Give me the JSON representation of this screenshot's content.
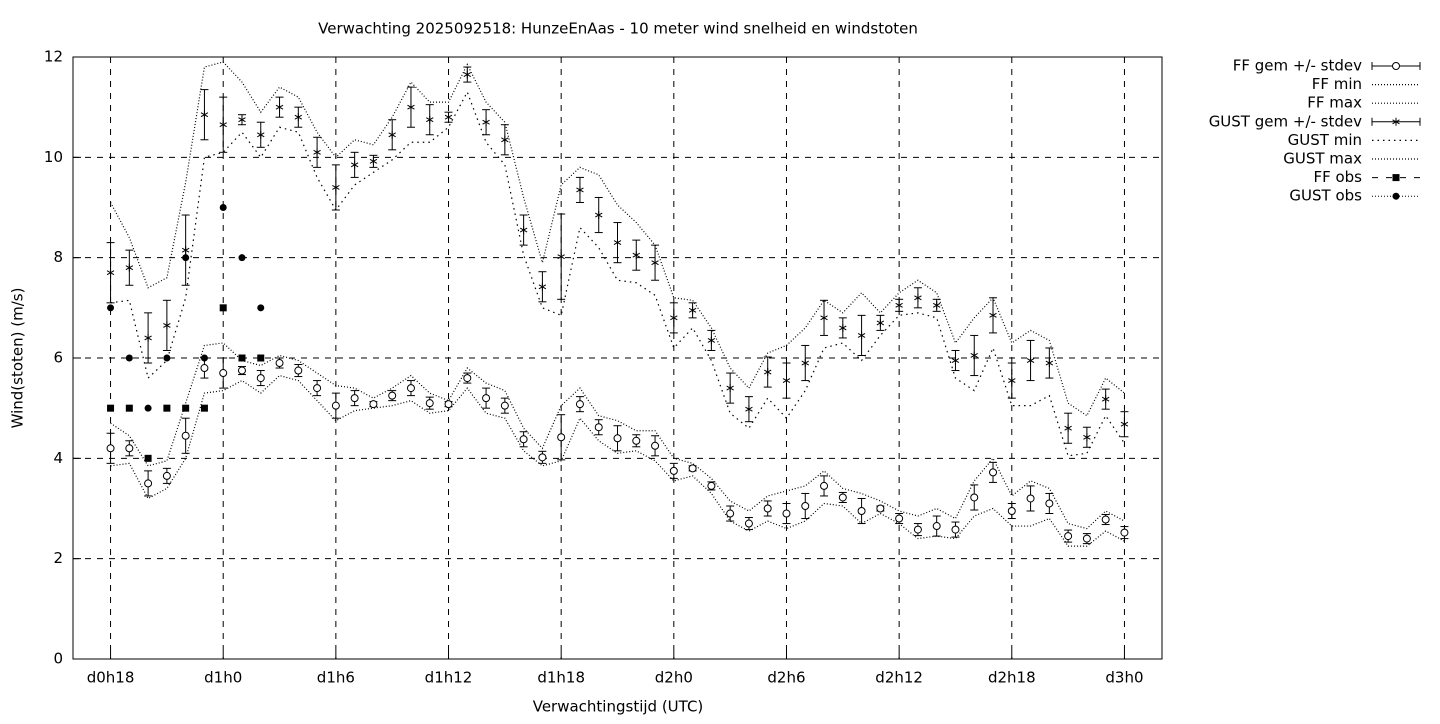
{
  "chart_data": {
    "type": "errorbar",
    "title": "Verwachting 2025092518: HunzeEnAas - 10 meter wind snelheid en windstoten",
    "xlabel": "Verwachtingstijd (UTC)",
    "ylabel": "Wind(stoten) (m/s)",
    "xlim": [
      16,
      74
    ],
    "ylim": [
      0,
      12
    ],
    "xticks": [
      {
        "value": 18,
        "label": "d0h18"
      },
      {
        "value": 24,
        "label": "d1h0"
      },
      {
        "value": 30,
        "label": "d1h6"
      },
      {
        "value": 36,
        "label": "d1h12"
      },
      {
        "value": 42,
        "label": "d1h18"
      },
      {
        "value": 48,
        "label": "d2h0"
      },
      {
        "value": 54,
        "label": "d2h6"
      },
      {
        "value": 60,
        "label": "d2h12"
      },
      {
        "value": 66,
        "label": "d2h18"
      },
      {
        "value": 72,
        "label": "d3h0"
      }
    ],
    "yticks": [
      0,
      2,
      4,
      6,
      8,
      10,
      12
    ],
    "grid": true,
    "legend": "outside-right",
    "x": [
      18,
      19,
      20,
      21,
      22,
      23,
      24,
      25,
      26,
      27,
      28,
      29,
      30,
      31,
      32,
      33,
      34,
      35,
      36,
      37,
      38,
      39,
      40,
      41,
      42,
      43,
      44,
      45,
      46,
      47,
      48,
      49,
      50,
      51,
      52,
      53,
      54,
      55,
      56,
      57,
      58,
      59,
      60,
      61,
      62,
      63,
      64,
      65,
      66,
      67,
      68,
      69,
      70,
      71,
      72
    ],
    "series": [
      {
        "name": "FF gem +/- stdev",
        "color": "#000000",
        "style": "errorbar-circle",
        "values": [
          4.2,
          4.2,
          3.5,
          3.65,
          4.45,
          5.8,
          5.7,
          5.75,
          5.6,
          5.9,
          5.75,
          5.4,
          5.05,
          5.2,
          5.08,
          5.25,
          5.4,
          5.1,
          5.08,
          5.6,
          5.2,
          5.05,
          4.38,
          4.02,
          4.42,
          5.08,
          4.62,
          4.4,
          4.35,
          4.25,
          3.75,
          3.8,
          3.45,
          2.9,
          2.7,
          3.0,
          2.9,
          3.05,
          3.45,
          3.22,
          2.95,
          3.0,
          2.8,
          2.58,
          2.65,
          2.58,
          3.22,
          3.72,
          2.95,
          3.2,
          3.1,
          2.45,
          2.4,
          2.78,
          2.52
        ],
        "errors": [
          0.3,
          0.15,
          0.25,
          0.15,
          0.35,
          0.2,
          0.3,
          0.08,
          0.15,
          0.1,
          0.12,
          0.15,
          0.25,
          0.15,
          0.05,
          0.1,
          0.15,
          0.12,
          0.05,
          0.1,
          0.2,
          0.15,
          0.15,
          0.12,
          0.45,
          0.15,
          0.15,
          0.25,
          0.12,
          0.2,
          0.15,
          0.05,
          0.08,
          0.15,
          0.12,
          0.15,
          0.2,
          0.25,
          0.2,
          0.1,
          0.25,
          0.05,
          0.1,
          0.12,
          0.2,
          0.15,
          0.25,
          0.2,
          0.15,
          0.25,
          0.2,
          0.12,
          0.1,
          0.1,
          0.12
        ]
      },
      {
        "name": "FF min",
        "color": "#000000",
        "style": "line-dotted",
        "values": [
          3.85,
          3.9,
          3.2,
          3.4,
          4.0,
          5.3,
          5.35,
          5.55,
          5.3,
          5.65,
          5.55,
          5.15,
          4.75,
          4.95,
          5.0,
          5.05,
          5.15,
          4.9,
          4.95,
          5.4,
          4.9,
          4.8,
          4.15,
          3.85,
          3.95,
          4.8,
          4.35,
          4.1,
          4.15,
          3.95,
          3.55,
          3.65,
          3.3,
          2.75,
          2.55,
          2.75,
          2.6,
          2.75,
          3.1,
          3.05,
          2.7,
          2.9,
          2.7,
          2.4,
          2.45,
          2.4,
          2.85,
          3.0,
          2.65,
          2.65,
          2.8,
          2.25,
          2.25,
          2.55,
          2.35
        ]
      },
      {
        "name": "FF max",
        "color": "#000000",
        "style": "line-dotted",
        "values": [
          4.7,
          4.45,
          3.85,
          3.95,
          5.1,
          6.25,
          6.3,
          5.95,
          5.85,
          6.05,
          5.95,
          5.7,
          5.45,
          5.4,
          5.2,
          5.4,
          5.65,
          5.3,
          5.15,
          5.8,
          5.5,
          5.35,
          4.6,
          4.2,
          5.05,
          5.4,
          4.85,
          4.75,
          4.55,
          4.55,
          4.0,
          3.9,
          3.6,
          3.15,
          2.95,
          3.25,
          3.35,
          3.45,
          3.75,
          3.4,
          3.3,
          3.15,
          2.95,
          2.85,
          3.0,
          2.8,
          3.55,
          4.0,
          3.25,
          3.55,
          3.4,
          2.7,
          2.6,
          2.95,
          2.75
        ]
      },
      {
        "name": "GUST gem +/- stdev",
        "color": "#000000",
        "style": "errorbar-star",
        "values": [
          7.7,
          7.8,
          6.4,
          6.65,
          8.15,
          10.85,
          10.65,
          10.75,
          10.45,
          11.0,
          10.8,
          10.1,
          9.4,
          9.85,
          9.92,
          10.45,
          11.0,
          10.75,
          10.8,
          11.65,
          10.7,
          10.35,
          8.55,
          7.42,
          8.02,
          9.35,
          8.85,
          8.3,
          8.05,
          7.9,
          6.8,
          6.95,
          6.35,
          5.4,
          4.98,
          5.72,
          5.55,
          5.9,
          6.8,
          6.6,
          6.45,
          6.7,
          7.05,
          7.2,
          7.05,
          5.95,
          6.05,
          6.85,
          5.55,
          5.95,
          5.9,
          4.6,
          4.42,
          5.18,
          4.68
        ],
        "errors": [
          0.6,
          0.35,
          0.5,
          0.5,
          0.7,
          0.5,
          0.55,
          0.1,
          0.25,
          0.2,
          0.2,
          0.3,
          0.45,
          0.25,
          0.12,
          0.3,
          0.4,
          0.3,
          0.1,
          0.15,
          0.25,
          0.3,
          0.3,
          0.3,
          0.85,
          0.25,
          0.35,
          0.4,
          0.3,
          0.35,
          0.3,
          0.15,
          0.2,
          0.3,
          0.25,
          0.3,
          0.35,
          0.35,
          0.35,
          0.2,
          0.4,
          0.15,
          0.12,
          0.2,
          0.12,
          0.2,
          0.4,
          0.35,
          0.35,
          0.4,
          0.3,
          0.3,
          0.2,
          0.2,
          0.25
        ]
      },
      {
        "name": "GUST min",
        "color": "#000000",
        "style": "line-dotted-coarse",
        "values": [
          7.1,
          7.15,
          5.6,
          5.95,
          7.2,
          10.0,
          10.1,
          10.5,
          10.0,
          10.6,
          10.5,
          9.6,
          8.95,
          9.45,
          9.7,
          9.95,
          10.3,
          10.3,
          10.6,
          11.3,
          10.3,
          9.85,
          8.05,
          7.0,
          6.85,
          8.6,
          8.2,
          7.55,
          7.5,
          7.25,
          6.2,
          6.6,
          5.95,
          4.9,
          4.6,
          5.2,
          4.8,
          5.35,
          6.2,
          6.3,
          5.95,
          6.45,
          6.85,
          6.9,
          6.8,
          5.6,
          5.35,
          6.2,
          5.05,
          5.05,
          5.25,
          4.05,
          4.1,
          4.85,
          4.3
        ]
      },
      {
        "name": "GUST max",
        "color": "#000000",
        "style": "line-dotted",
        "values": [
          9.1,
          8.4,
          7.4,
          7.6,
          9.5,
          11.8,
          11.9,
          11.5,
          10.9,
          11.4,
          11.2,
          10.5,
          10.0,
          10.35,
          10.25,
          10.8,
          11.5,
          11.1,
          11.1,
          11.85,
          11.1,
          10.7,
          9.2,
          7.9,
          9.45,
          9.8,
          9.65,
          9.05,
          8.7,
          8.25,
          7.2,
          7.15,
          6.6,
          5.8,
          5.4,
          6.1,
          6.25,
          6.6,
          7.15,
          6.9,
          7.3,
          6.9,
          7.3,
          7.55,
          7.3,
          6.3,
          6.8,
          7.2,
          6.3,
          6.55,
          6.35,
          5.1,
          4.85,
          5.6,
          5.3
        ]
      },
      {
        "name": "FF obs",
        "color": "#000000",
        "style": "points-square",
        "x": [
          18,
          19,
          20,
          21,
          22,
          23,
          24,
          25,
          26
        ],
        "values": [
          5,
          5,
          4,
          5,
          5,
          5,
          7,
          6,
          6
        ]
      },
      {
        "name": "GUST obs",
        "color": "#000000",
        "style": "points-circle",
        "x": [
          18,
          19,
          20,
          21,
          22,
          23,
          24,
          25,
          26
        ],
        "values": [
          7,
          6,
          5,
          6,
          8,
          6,
          9,
          8,
          7
        ]
      }
    ]
  }
}
